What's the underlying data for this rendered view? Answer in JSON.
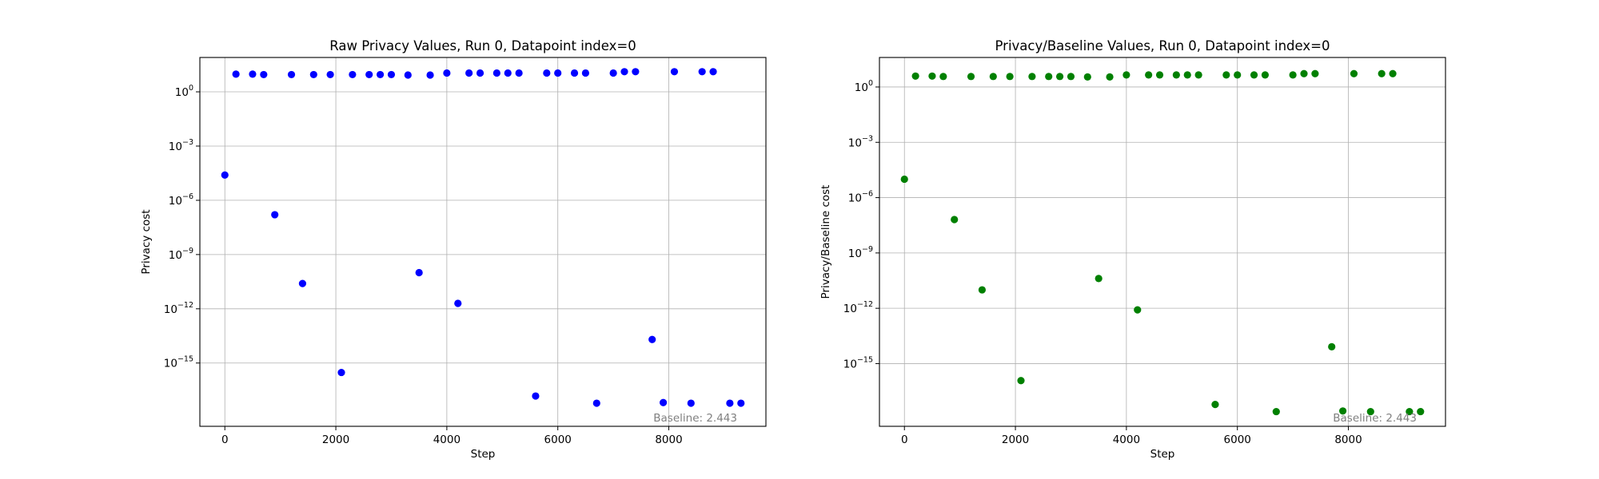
{
  "chart_data": [
    {
      "type": "scatter",
      "title": "Raw Privacy Values, Run 0, Datapoint index=0",
      "xlabel": "Step",
      "ylabel": "Privacy cost",
      "xlim": [
        -450,
        9750
      ],
      "ylim_log10": [
        -18.5,
        1.9
      ],
      "yscale": "log",
      "grid": true,
      "color": "#0000ff",
      "x_ticks": [
        {
          "value": 0,
          "label": "0"
        },
        {
          "value": 2000,
          "label": "2000"
        },
        {
          "value": 4000,
          "label": "4000"
        },
        {
          "value": 6000,
          "label": "6000"
        },
        {
          "value": 8000,
          "label": "8000"
        }
      ],
      "y_ticks": [
        {
          "exp": 0,
          "label": "10",
          "sup": "0"
        },
        {
          "exp": -3,
          "label": "10",
          "sup": "−3"
        },
        {
          "exp": -6,
          "label": "10",
          "sup": "−6"
        },
        {
          "exp": -9,
          "label": "10",
          "sup": "−9"
        },
        {
          "exp": -12,
          "label": "10",
          "sup": "−12"
        },
        {
          "exp": -15,
          "label": "10",
          "sup": "−15"
        }
      ],
      "annotation": "Baseline: 2.443",
      "points": [
        {
          "x": 0,
          "y": 2.5e-05
        },
        {
          "x": 200,
          "y": 9.5
        },
        {
          "x": 500,
          "y": 9.5
        },
        {
          "x": 700,
          "y": 9.0
        },
        {
          "x": 900,
          "y": 1.6e-07
        },
        {
          "x": 1200,
          "y": 9.0
        },
        {
          "x": 1400,
          "y": 2.5e-11
        },
        {
          "x": 1600,
          "y": 9.0
        },
        {
          "x": 1900,
          "y": 9.0
        },
        {
          "x": 2100,
          "y": 3e-16
        },
        {
          "x": 2300,
          "y": 9.0
        },
        {
          "x": 2600,
          "y": 9.0
        },
        {
          "x": 2800,
          "y": 9.0
        },
        {
          "x": 3000,
          "y": 9.0
        },
        {
          "x": 3300,
          "y": 8.5
        },
        {
          "x": 3500,
          "y": 1e-10
        },
        {
          "x": 3700,
          "y": 8.5
        },
        {
          "x": 4000,
          "y": 11.0
        },
        {
          "x": 4200,
          "y": 2e-12
        },
        {
          "x": 4400,
          "y": 11.0
        },
        {
          "x": 4600,
          "y": 11.0
        },
        {
          "x": 4900,
          "y": 11.0
        },
        {
          "x": 5100,
          "y": 11.0
        },
        {
          "x": 5300,
          "y": 11.0
        },
        {
          "x": 5600,
          "y": 1.5e-17
        },
        {
          "x": 5800,
          "y": 11.0
        },
        {
          "x": 6000,
          "y": 11.0
        },
        {
          "x": 6300,
          "y": 11.0
        },
        {
          "x": 6500,
          "y": 11.0
        },
        {
          "x": 6700,
          "y": 6e-18
        },
        {
          "x": 7000,
          "y": 11.0
        },
        {
          "x": 7200,
          "y": 13.0
        },
        {
          "x": 7400,
          "y": 13.0
        },
        {
          "x": 7700,
          "y": 2e-14
        },
        {
          "x": 7900,
          "y": 6.5e-18
        },
        {
          "x": 8100,
          "y": 13.0
        },
        {
          "x": 8400,
          "y": 6e-18
        },
        {
          "x": 8600,
          "y": 13.0
        },
        {
          "x": 8800,
          "y": 13.0
        },
        {
          "x": 9100,
          "y": 6e-18
        },
        {
          "x": 9300,
          "y": 6e-18
        }
      ]
    },
    {
      "type": "scatter",
      "title": "Privacy/Baseline Values, Run 0, Datapoint index=0",
      "xlabel": "Step",
      "ylabel": "Privacy/Baseline cost",
      "xlim": [
        -450,
        9750
      ],
      "ylim_log10": [
        -18.4,
        1.6
      ],
      "yscale": "log",
      "grid": true,
      "color": "#008000",
      "x_ticks": [
        {
          "value": 0,
          "label": "0"
        },
        {
          "value": 2000,
          "label": "2000"
        },
        {
          "value": 4000,
          "label": "4000"
        },
        {
          "value": 6000,
          "label": "6000"
        },
        {
          "value": 8000,
          "label": "8000"
        }
      ],
      "y_ticks": [
        {
          "exp": 0,
          "label": "10",
          "sup": "0"
        },
        {
          "exp": -3,
          "label": "10",
          "sup": "−3"
        },
        {
          "exp": -6,
          "label": "10",
          "sup": "−6"
        },
        {
          "exp": -9,
          "label": "10",
          "sup": "−9"
        },
        {
          "exp": -12,
          "label": "10",
          "sup": "−12"
        },
        {
          "exp": -15,
          "label": "10",
          "sup": "−15"
        }
      ],
      "annotation": "Baseline: 2.443",
      "points": [
        {
          "x": 0,
          "y": 1e-05
        },
        {
          "x": 200,
          "y": 3.9
        },
        {
          "x": 500,
          "y": 3.9
        },
        {
          "x": 700,
          "y": 3.7
        },
        {
          "x": 900,
          "y": 6.5e-08
        },
        {
          "x": 1200,
          "y": 3.7
        },
        {
          "x": 1400,
          "y": 1e-11
        },
        {
          "x": 1600,
          "y": 3.7
        },
        {
          "x": 1900,
          "y": 3.7
        },
        {
          "x": 2100,
          "y": 1.2e-16
        },
        {
          "x": 2300,
          "y": 3.7
        },
        {
          "x": 2600,
          "y": 3.7
        },
        {
          "x": 2800,
          "y": 3.7
        },
        {
          "x": 3000,
          "y": 3.7
        },
        {
          "x": 3300,
          "y": 3.5
        },
        {
          "x": 3500,
          "y": 4.1e-11
        },
        {
          "x": 3700,
          "y": 3.5
        },
        {
          "x": 4000,
          "y": 4.5
        },
        {
          "x": 4200,
          "y": 8.2e-13
        },
        {
          "x": 4400,
          "y": 4.5
        },
        {
          "x": 4600,
          "y": 4.5
        },
        {
          "x": 4900,
          "y": 4.5
        },
        {
          "x": 5100,
          "y": 4.5
        },
        {
          "x": 5300,
          "y": 4.5
        },
        {
          "x": 5600,
          "y": 6.1e-18
        },
        {
          "x": 5800,
          "y": 4.5
        },
        {
          "x": 6000,
          "y": 4.5
        },
        {
          "x": 6300,
          "y": 4.5
        },
        {
          "x": 6500,
          "y": 4.5
        },
        {
          "x": 6700,
          "y": 2.5e-18
        },
        {
          "x": 7000,
          "y": 4.5
        },
        {
          "x": 7200,
          "y": 5.3
        },
        {
          "x": 7400,
          "y": 5.3
        },
        {
          "x": 7700,
          "y": 8.2e-15
        },
        {
          "x": 7900,
          "y": 2.7e-18
        },
        {
          "x": 8100,
          "y": 5.3
        },
        {
          "x": 8400,
          "y": 2.5e-18
        },
        {
          "x": 8600,
          "y": 5.3
        },
        {
          "x": 8800,
          "y": 5.3
        },
        {
          "x": 9100,
          "y": 2.5e-18
        },
        {
          "x": 9300,
          "y": 2.5e-18
        }
      ]
    }
  ]
}
